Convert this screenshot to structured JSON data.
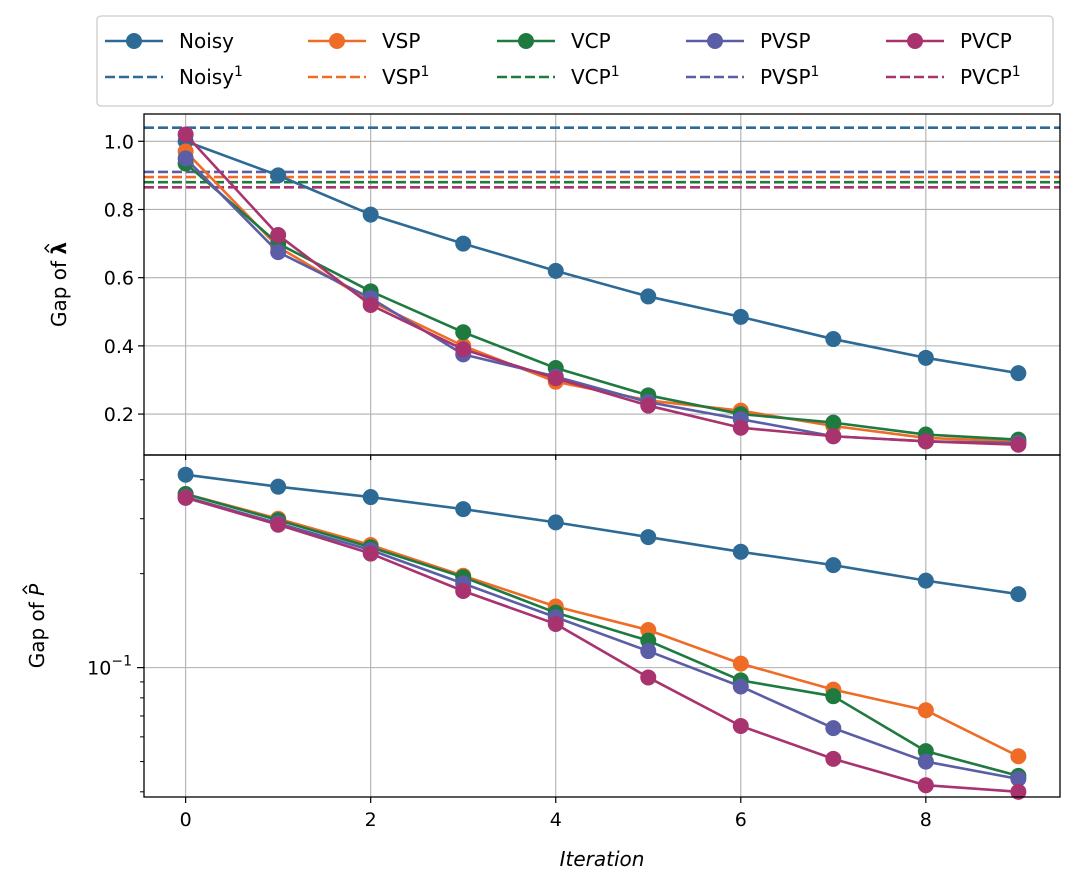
{
  "chart_data": {
    "type": "line",
    "xlabel": "Iteration",
    "x": [
      0,
      1,
      2,
      3,
      4,
      5,
      6,
      7,
      8,
      9
    ],
    "xticks": [
      "0",
      "2",
      "4",
      "6",
      "8"
    ],
    "xtick_values": [
      0,
      2,
      4,
      6,
      8
    ],
    "xlim": [
      -0.45,
      9.45
    ],
    "grid": true,
    "legend": {
      "placement": "top-center",
      "columns": 5,
      "entries": [
        {
          "label": "Noisy",
          "sup": "",
          "style": "solid-marker",
          "color": "#2e6a96"
        },
        {
          "label": "VSP",
          "sup": "",
          "style": "solid-marker",
          "color": "#ef6c26"
        },
        {
          "label": "VCP",
          "sup": "",
          "style": "solid-marker",
          "color": "#1f7a3f"
        },
        {
          "label": "PVSP",
          "sup": "",
          "style": "solid-marker",
          "color": "#5b5ea6"
        },
        {
          "label": "PVCP",
          "sup": "",
          "style": "solid-marker",
          "color": "#a8336e"
        },
        {
          "label": "Noisy",
          "sup": "1",
          "style": "dashed",
          "color": "#2e6a96"
        },
        {
          "label": "VSP",
          "sup": "1",
          "style": "dashed",
          "color": "#ef6c26"
        },
        {
          "label": "VCP",
          "sup": "1",
          "style": "dashed",
          "color": "#1f7a3f"
        },
        {
          "label": "PVSP",
          "sup": "1",
          "style": "dashed",
          "color": "#5b5ea6"
        },
        {
          "label": "PVCP",
          "sup": "1",
          "style": "dashed",
          "color": "#a8336e"
        }
      ]
    },
    "panels": [
      {
        "ylabel": "Gap of λ̂",
        "ylabel_prefix": "Gap of ",
        "ylabel_symbol": "λ",
        "yscale": "linear",
        "ylim": [
          0.08,
          1.08
        ],
        "yticks": [
          "0.2",
          "0.4",
          "0.6",
          "0.8",
          "1.0"
        ],
        "ytick_values": [
          0.2,
          0.4,
          0.6,
          0.8,
          1.0
        ],
        "series": [
          {
            "name": "Noisy",
            "color": "#2e6a96",
            "values": [
              1.0,
              0.9,
              0.785,
              0.7,
              0.62,
              0.545,
              0.485,
              0.42,
              0.365,
              0.32
            ]
          },
          {
            "name": "VSP",
            "color": "#ef6c26",
            "values": [
              0.97,
              0.69,
              0.53,
              0.4,
              0.295,
              0.24,
              0.21,
              0.165,
              0.13,
              0.12
            ]
          },
          {
            "name": "VCP",
            "color": "#1f7a3f",
            "values": [
              0.935,
              0.7,
              0.56,
              0.44,
              0.335,
              0.255,
              0.2,
              0.175,
              0.14,
              0.125
            ]
          },
          {
            "name": "PVSP",
            "color": "#5b5ea6",
            "values": [
              0.95,
              0.675,
              0.54,
              0.375,
              0.31,
              0.235,
              0.185,
              0.135,
              0.12,
              0.115
            ]
          },
          {
            "name": "PVCP",
            "color": "#a8336e",
            "values": [
              1.02,
              0.725,
              0.52,
              0.39,
              0.305,
              0.225,
              0.16,
              0.135,
              0.12,
              0.11
            ]
          }
        ],
        "hlines": [
          {
            "name": "Noisy",
            "sup": "1",
            "color": "#2e6a96",
            "value": 1.04
          },
          {
            "name": "PVSP",
            "sup": "1",
            "color": "#5b5ea6",
            "value": 0.91
          },
          {
            "name": "VSP",
            "sup": "1",
            "color": "#ef6c26",
            "value": 0.895
          },
          {
            "name": "VCP",
            "sup": "1",
            "color": "#1f7a3f",
            "value": 0.88
          },
          {
            "name": "PVCP",
            "sup": "1",
            "color": "#a8336e",
            "value": 0.865
          }
        ]
      },
      {
        "ylabel": "Gap of P̂",
        "ylabel_prefix": "Gap of ",
        "ylabel_symbol": "P",
        "yscale": "log",
        "ylim": [
          0.0385,
          0.48
        ],
        "ytick_major": [
          {
            "value": 0.1,
            "base": "10",
            "exp": "−1"
          }
        ],
        "ytick_minor": [
          0.04,
          0.05,
          0.06,
          0.07,
          0.08,
          0.09,
          0.2,
          0.3,
          0.4
        ],
        "series": [
          {
            "name": "Noisy",
            "color": "#2e6a96",
            "values": [
              0.415,
              0.38,
              0.352,
              0.322,
              0.292,
              0.262,
              0.235,
              0.213,
              0.19,
              0.172
            ]
          },
          {
            "name": "VSP",
            "color": "#ef6c26",
            "values": [
              0.36,
              0.3,
              0.247,
              0.197,
              0.157,
              0.132,
              0.103,
              0.085,
              0.073,
              0.052
            ]
          },
          {
            "name": "VCP",
            "color": "#1f7a3f",
            "values": [
              0.36,
              0.297,
              0.243,
              0.195,
              0.15,
              0.122,
              0.091,
              0.081,
              0.054,
              0.045
            ]
          },
          {
            "name": "PVSP",
            "color": "#5b5ea6",
            "values": [
              0.352,
              0.29,
              0.238,
              0.186,
              0.145,
              0.113,
              0.087,
              0.064,
              0.05,
              0.044
            ]
          },
          {
            "name": "PVCP",
            "color": "#a8336e",
            "values": [
              0.35,
              0.287,
              0.232,
              0.176,
              0.138,
              0.093,
              0.065,
              0.051,
              0.042,
              0.04
            ]
          }
        ]
      }
    ]
  }
}
